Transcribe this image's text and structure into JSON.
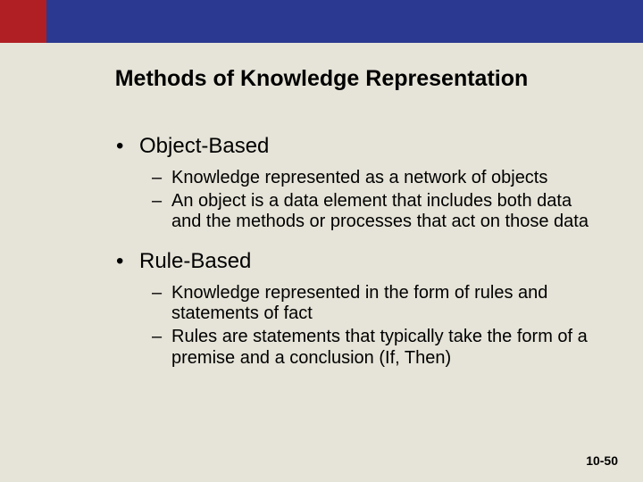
{
  "colors": {
    "slide_background": "#e6e4d8",
    "red_block": "#b01f24",
    "blue_bar": "#2b3990",
    "text": "#000000"
  },
  "title": "Methods of Knowledge Representation",
  "sections": [
    {
      "heading": "Object-Based",
      "items": [
        "Knowledge represented as a network of objects",
        "An object is a data element that includes both data and the methods or processes that act on those data"
      ]
    },
    {
      "heading": "Rule-Based",
      "items": [
        "Knowledge represented in the form of rules and statements of fact",
        "Rules are statements that typically take the form of a premise and a conclusion (If, Then)"
      ]
    }
  ],
  "page_number": "10-50"
}
